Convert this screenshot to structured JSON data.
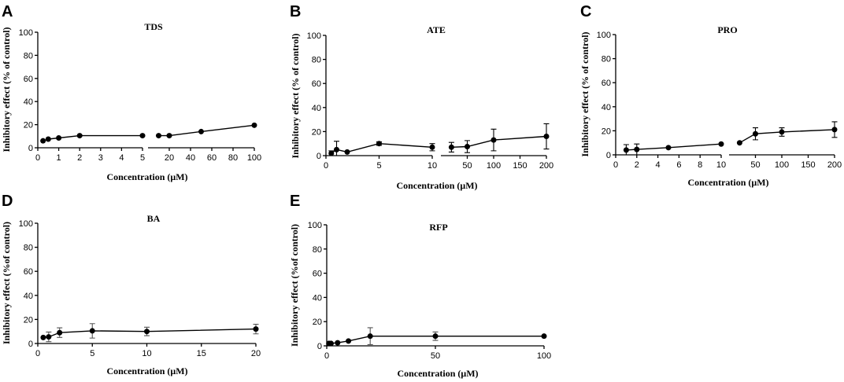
{
  "figure": {
    "panels": [
      "A",
      "B",
      "C",
      "D",
      "E"
    ]
  },
  "chart_data": [
    {
      "panel": "A",
      "type": "line",
      "title": "TDS",
      "xlabel": "Concentration (μM)",
      "ylabel": "Inhibitory effect (% of control)",
      "ylim": [
        0,
        100
      ],
      "yticks": [
        0,
        20,
        40,
        60,
        80,
        100
      ],
      "broken_x_axis": true,
      "x_segments": [
        {
          "range": [
            0,
            5
          ],
          "ticks": [
            0,
            1,
            2,
            3,
            4,
            5
          ]
        },
        {
          "range": [
            0,
            100
          ],
          "ticks": [
            20,
            40,
            60,
            80,
            100
          ]
        }
      ],
      "series": [
        {
          "name": "TDS",
          "points": [
            {
              "seg": 0,
              "x": 0.25,
              "y": 6,
              "err": 0
            },
            {
              "seg": 0,
              "x": 0.5,
              "y": 7.5,
              "err": 0
            },
            {
              "seg": 0,
              "x": 1,
              "y": 8.5,
              "err": 0
            },
            {
              "seg": 0,
              "x": 2,
              "y": 10.5,
              "err": 0
            },
            {
              "seg": 0,
              "x": 5,
              "y": 10.5,
              "err": 0
            },
            {
              "seg": 1,
              "x": 10,
              "y": 10.5,
              "err": 0
            },
            {
              "seg": 1,
              "x": 20,
              "y": 10.5,
              "err": 0
            },
            {
              "seg": 1,
              "x": 50,
              "y": 14,
              "err": 0
            },
            {
              "seg": 1,
              "x": 100,
              "y": 19.5,
              "err": 0
            }
          ]
        }
      ]
    },
    {
      "panel": "B",
      "type": "line",
      "title": "ATE",
      "xlabel": "Concentration (μM)",
      "ylabel": "Inhibitory effect (% of control)",
      "ylim": [
        0,
        100
      ],
      "yticks": [
        0,
        20,
        40,
        60,
        80,
        100
      ],
      "broken_x_axis": true,
      "x_segments": [
        {
          "range": [
            0,
            10
          ],
          "ticks": [
            0,
            5,
            10
          ]
        },
        {
          "range": [
            0,
            200
          ],
          "ticks": [
            50,
            100,
            150,
            200
          ]
        }
      ],
      "series": [
        {
          "name": "ATE",
          "points": [
            {
              "seg": 0,
              "x": 0.5,
              "y": 2,
              "err": 2
            },
            {
              "seg": 0,
              "x": 1,
              "y": 5,
              "err": 7
            },
            {
              "seg": 0,
              "x": 2,
              "y": 3,
              "err": 0
            },
            {
              "seg": 0,
              "x": 5,
              "y": 10,
              "err": 1.5
            },
            {
              "seg": 0,
              "x": 10,
              "y": 7,
              "err": 3
            },
            {
              "seg": 1,
              "x": 20,
              "y": 7,
              "err": 4
            },
            {
              "seg": 1,
              "x": 50,
              "y": 7.5,
              "err": 5
            },
            {
              "seg": 1,
              "x": 100,
              "y": 13,
              "err": 9
            },
            {
              "seg": 1,
              "x": 200,
              "y": 16,
              "err": 10.5
            }
          ]
        }
      ]
    },
    {
      "panel": "C",
      "type": "line",
      "title": "PRO",
      "xlabel": "Concentration (μM)",
      "ylabel": "Inhibitory effect (% of control)",
      "ylim": [
        0,
        100
      ],
      "yticks": [
        0,
        20,
        40,
        60,
        80,
        100
      ],
      "broken_x_axis": true,
      "x_segments": [
        {
          "range": [
            0,
            10
          ],
          "ticks": [
            0,
            2,
            4,
            6,
            8,
            10
          ]
        },
        {
          "range": [
            0,
            200
          ],
          "ticks": [
            50,
            100,
            150,
            200
          ]
        }
      ],
      "series": [
        {
          "name": "PRO",
          "points": [
            {
              "seg": 0,
              "x": 1,
              "y": 4,
              "err": 4.5
            },
            {
              "seg": 0,
              "x": 2,
              "y": 4.5,
              "err": 4.5
            },
            {
              "seg": 0,
              "x": 5,
              "y": 6,
              "err": 0
            },
            {
              "seg": 0,
              "x": 10,
              "y": 9,
              "err": 0
            },
            {
              "seg": 1,
              "x": 20,
              "y": 10,
              "err": 0
            },
            {
              "seg": 1,
              "x": 50,
              "y": 17.5,
              "err": 5
            },
            {
              "seg": 1,
              "x": 100,
              "y": 19,
              "err": 3.5
            },
            {
              "seg": 1,
              "x": 200,
              "y": 21,
              "err": 6.5
            }
          ]
        }
      ]
    },
    {
      "panel": "D",
      "type": "line",
      "title": "BA",
      "xlabel": "Concentration (μM)",
      "ylabel": "Inhibitory effect (%of control)",
      "ylim": [
        0,
        100
      ],
      "yticks": [
        0,
        20,
        40,
        60,
        80,
        100
      ],
      "xlim": [
        0,
        20
      ],
      "xticks": [
        0,
        5,
        10,
        15,
        20
      ],
      "series": [
        {
          "name": "BA",
          "points": [
            {
              "x": 0.5,
              "y": 5,
              "err": 0
            },
            {
              "x": 1,
              "y": 5.5,
              "err": 4
            },
            {
              "x": 2,
              "y": 9,
              "err": 4
            },
            {
              "x": 5,
              "y": 10.5,
              "err": 6
            },
            {
              "x": 10,
              "y": 10,
              "err": 3.5
            },
            {
              "x": 20,
              "y": 12,
              "err": 4
            }
          ]
        }
      ]
    },
    {
      "panel": "E",
      "type": "line",
      "title": "RFP",
      "xlabel": "Concentration (μM)",
      "ylabel": "Inhibitory effect (%of control)",
      "ylim": [
        0,
        100
      ],
      "yticks": [
        0,
        20,
        40,
        60,
        80,
        100
      ],
      "xlim": [
        0,
        100
      ],
      "xticks": [
        0,
        50,
        100
      ],
      "series": [
        {
          "name": "RFP",
          "points": [
            {
              "x": 1,
              "y": 2,
              "err": 0
            },
            {
              "x": 2,
              "y": 2,
              "err": 0
            },
            {
              "x": 5,
              "y": 2.5,
              "err": 0
            },
            {
              "x": 10,
              "y": 4,
              "err": 0
            },
            {
              "x": 20,
              "y": 8,
              "err": 7
            },
            {
              "x": 50,
              "y": 8,
              "err": 3.5
            },
            {
              "x": 100,
              "y": 8,
              "err": 0
            }
          ]
        }
      ]
    }
  ]
}
